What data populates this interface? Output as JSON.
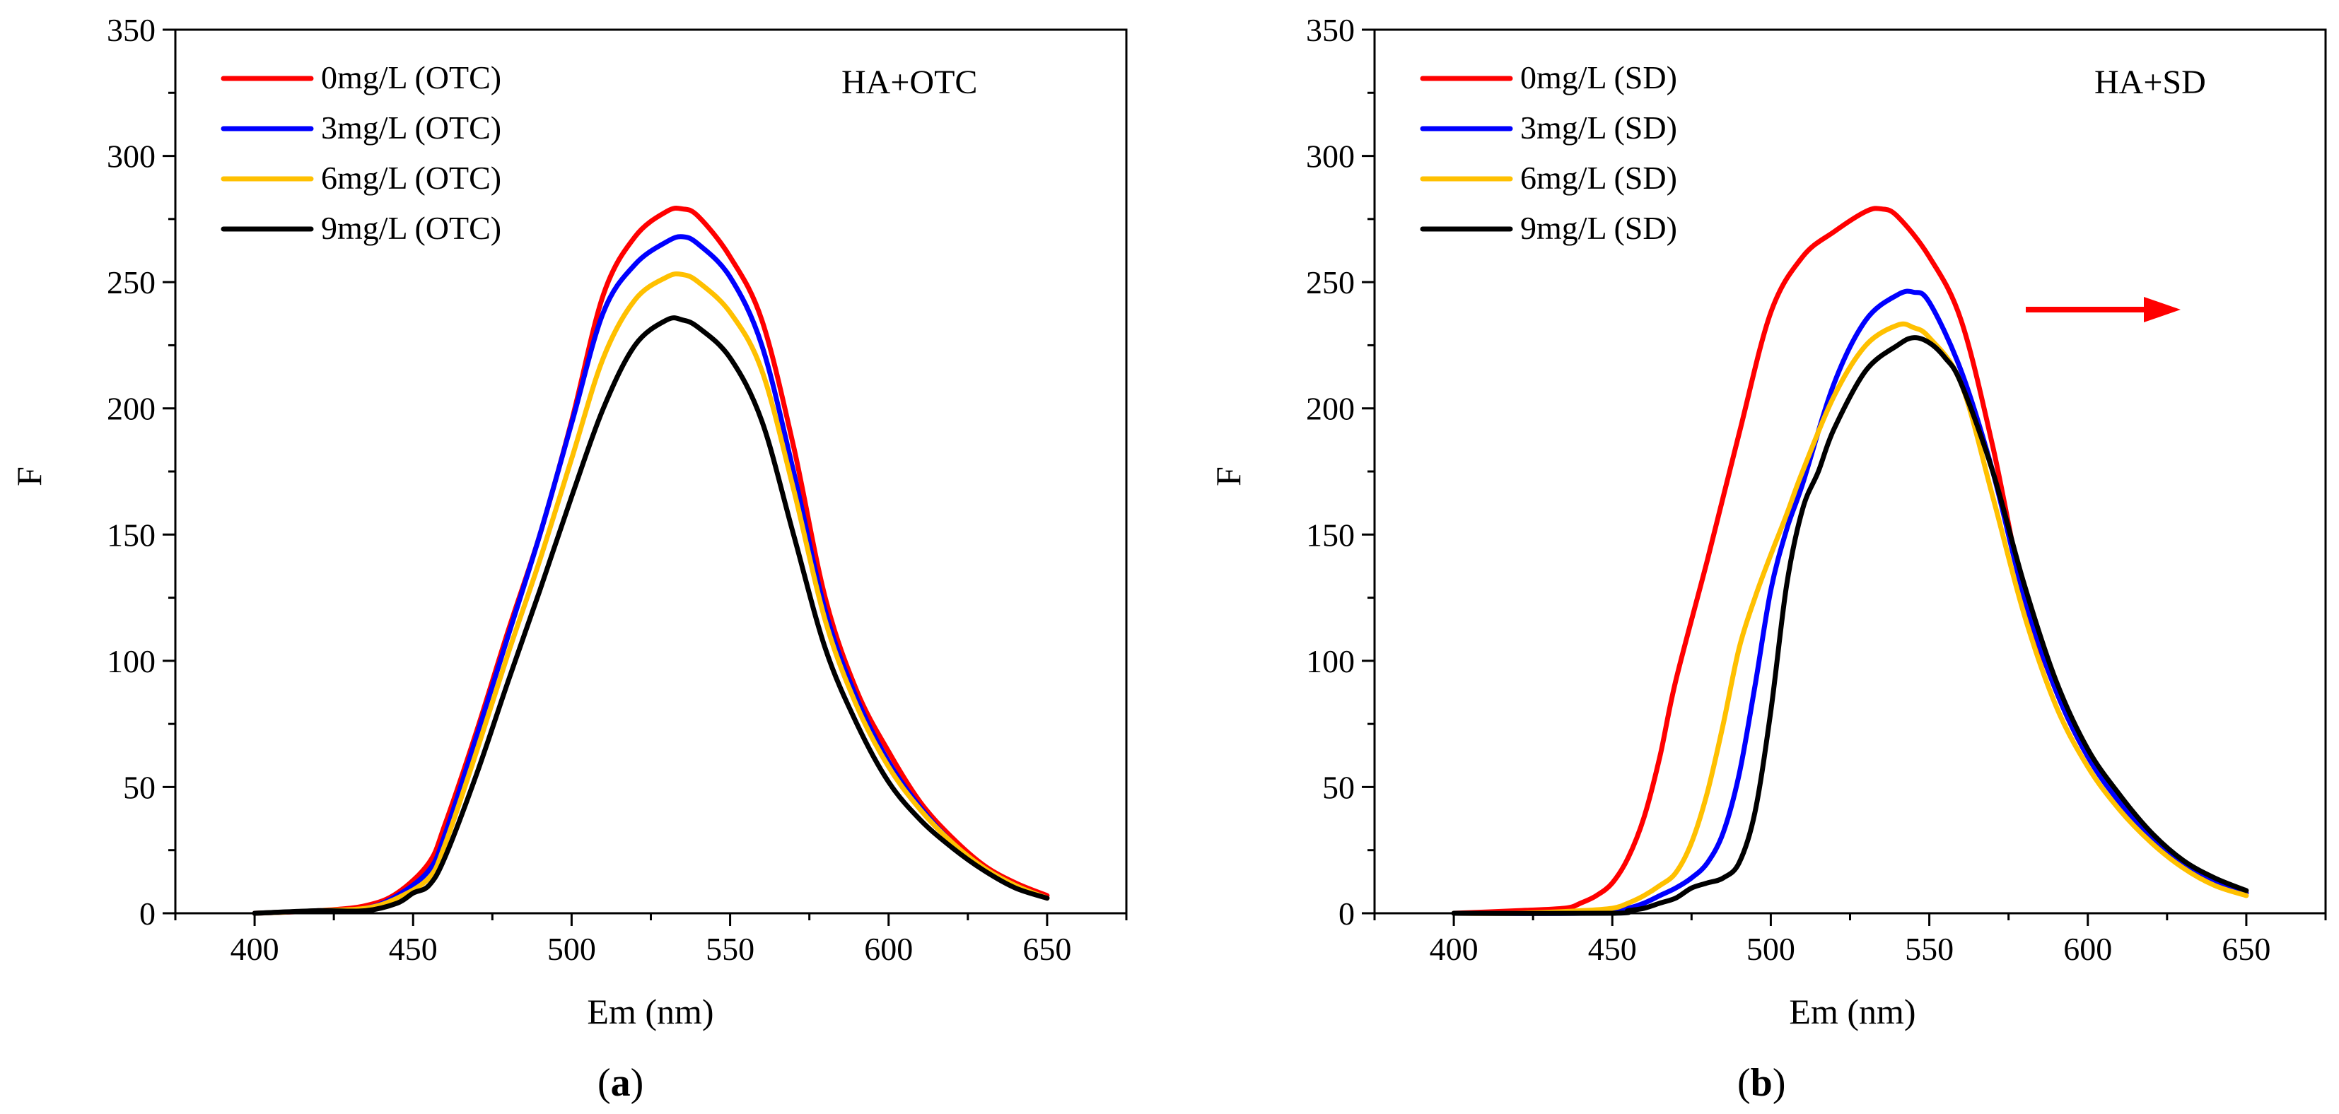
{
  "chart_data": [
    {
      "id": "a",
      "type": "line",
      "panel_label": "a",
      "annotation": "HA+OTC",
      "xlabel": "Em (nm)",
      "ylabel": "F",
      "xlim": [
        375,
        675
      ],
      "ylim": [
        0,
        350
      ],
      "xticks": [
        400,
        450,
        500,
        550,
        600,
        650
      ],
      "yticks": [
        0,
        50,
        100,
        150,
        200,
        250,
        300,
        350
      ],
      "legend_position": "top-left",
      "series": [
        {
          "name": "0mg/L (OTC)",
          "color": "#ff0000",
          "x": [
            400,
            420,
            435,
            445,
            455,
            460,
            470,
            480,
            490,
            500,
            510,
            520,
            530,
            535,
            540,
            550,
            560,
            570,
            580,
            590,
            600,
            610,
            620,
            630,
            640,
            650
          ],
          "y": [
            0,
            1,
            3,
            8,
            20,
            35,
            72,
            112,
            150,
            195,
            245,
            268,
            278,
            279,
            276,
            260,
            235,
            185,
            125,
            88,
            64,
            44,
            30,
            19,
            12,
            7
          ]
        },
        {
          "name": "3mg/L (OTC)",
          "color": "#0000ff",
          "x": [
            400,
            420,
            435,
            445,
            455,
            460,
            470,
            480,
            490,
            500,
            510,
            520,
            530,
            535,
            540,
            550,
            560,
            570,
            580,
            590,
            600,
            610,
            620,
            630,
            640,
            650
          ],
          "y": [
            0,
            1,
            2,
            7,
            17,
            31,
            70,
            110,
            150,
            194,
            238,
            257,
            266,
            268,
            265,
            252,
            225,
            175,
            120,
            85,
            60,
            42,
            28,
            18,
            11,
            6
          ]
        },
        {
          "name": "6mg/L (OTC)",
          "color": "#ffc000",
          "x": [
            400,
            420,
            435,
            445,
            455,
            460,
            470,
            480,
            490,
            500,
            510,
            520,
            530,
            535,
            540,
            550,
            560,
            570,
            580,
            590,
            600,
            610,
            620,
            630,
            640,
            650
          ],
          "y": [
            0,
            1,
            2,
            6,
            14,
            27,
            64,
            103,
            140,
            180,
            220,
            243,
            252,
            253,
            250,
            238,
            215,
            168,
            116,
            82,
            58,
            41,
            28,
            18,
            11,
            6
          ]
        },
        {
          "name": "9mg/L (OTC)",
          "color": "#000000",
          "x": [
            400,
            420,
            435,
            445,
            450,
            455,
            460,
            470,
            480,
            490,
            500,
            510,
            520,
            530,
            535,
            540,
            550,
            560,
            570,
            580,
            590,
            600,
            610,
            620,
            630,
            640,
            650
          ],
          "y": [
            0,
            1,
            1,
            4,
            8,
            11,
            22,
            55,
            92,
            128,
            165,
            200,
            225,
            235,
            235,
            232,
            220,
            195,
            150,
            105,
            75,
            52,
            37,
            26,
            17,
            10,
            6
          ]
        }
      ]
    },
    {
      "id": "b",
      "type": "line",
      "panel_label": "b",
      "annotation": "HA+SD",
      "xlabel": "Em (nm)",
      "ylabel": "F",
      "xlim": [
        375,
        675
      ],
      "ylim": [
        0,
        350
      ],
      "xticks": [
        400,
        450,
        500,
        550,
        600,
        650
      ],
      "yticks": [
        0,
        50,
        100,
        150,
        200,
        250,
        300,
        350
      ],
      "legend_position": "top-left",
      "series": [
        {
          "name": "0mg/L (SD)",
          "color": "#ff0000",
          "x": [
            400,
            420,
            435,
            440,
            445,
            450,
            455,
            460,
            465,
            470,
            480,
            490,
            500,
            510,
            520,
            530,
            535,
            540,
            550,
            560,
            570,
            580,
            590,
            600,
            610,
            620,
            630,
            640,
            650
          ],
          "y": [
            0,
            1,
            2,
            4,
            7,
            12,
            22,
            38,
            62,
            92,
            140,
            190,
            238,
            260,
            270,
            278,
            279,
            276,
            260,
            235,
            185,
            125,
            88,
            62,
            45,
            31,
            20,
            13,
            8
          ]
        },
        {
          "name": "3mg/L (SD)",
          "color": "#0000ff",
          "x": [
            400,
            440,
            450,
            455,
            460,
            465,
            470,
            475,
            480,
            485,
            490,
            495,
            500,
            505,
            510,
            520,
            530,
            540,
            545,
            550,
            560,
            570,
            580,
            590,
            600,
            610,
            620,
            630,
            640,
            650
          ],
          "y": [
            0,
            0,
            1,
            2,
            4,
            7,
            10,
            14,
            20,
            32,
            55,
            90,
            128,
            152,
            170,
            210,
            235,
            245,
            246,
            242,
            215,
            175,
            125,
            88,
            62,
            44,
            30,
            20,
            13,
            8
          ]
        },
        {
          "name": "6mg/L (SD)",
          "color": "#ffc000",
          "x": [
            400,
            420,
            440,
            450,
            455,
            460,
            465,
            470,
            475,
            480,
            485,
            490,
            495,
            500,
            505,
            510,
            520,
            530,
            540,
            545,
            550,
            560,
            570,
            580,
            590,
            600,
            610,
            620,
            630,
            640,
            650
          ],
          "y": [
            0,
            0,
            1,
            2,
            4,
            7,
            11,
            16,
            28,
            48,
            75,
            105,
            125,
            142,
            158,
            175,
            205,
            225,
            233,
            232,
            228,
            210,
            165,
            118,
            82,
            58,
            41,
            28,
            18,
            11,
            7
          ]
        },
        {
          "name": "9mg/L (SD)",
          "color": "#000000",
          "x": [
            400,
            450,
            455,
            460,
            465,
            470,
            475,
            480,
            485,
            490,
            495,
            500,
            505,
            510,
            515,
            520,
            530,
            540,
            545,
            550,
            555,
            560,
            570,
            580,
            590,
            600,
            610,
            620,
            630,
            640,
            650
          ],
          "y": [
            0,
            0,
            1,
            2,
            4,
            6,
            10,
            12,
            14,
            20,
            40,
            80,
            130,
            160,
            175,
            192,
            215,
            225,
            228,
            226,
            220,
            210,
            175,
            130,
            92,
            65,
            47,
            32,
            21,
            14,
            9
          ]
        }
      ]
    }
  ]
}
